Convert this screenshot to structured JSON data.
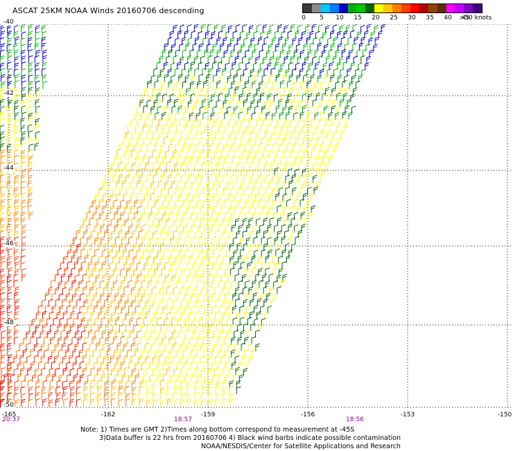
{
  "title": "ASCAT 25KM NOAA Winds 20160706 descending",
  "colorbar": {
    "colors": [
      "#3a3a3a",
      "#8c8c8c",
      "#00c8ff",
      "#0080ff",
      "#0000c8",
      "#00b400",
      "#00c800",
      "#006400",
      "#ffff00",
      "#ffc800",
      "#ff8000",
      "#ff4000",
      "#ff0000",
      "#b40000",
      "#8b4513",
      "#5a2d0c",
      "#ff00ff",
      "#c800ff",
      "#8000c8",
      "#400080"
    ],
    "labels": [
      "0",
      "5",
      "10",
      "15",
      "20",
      "25",
      "30",
      "35",
      "40",
      "45",
      ">50 knots"
    ]
  },
  "axes": {
    "lat_labels": [
      "-40",
      "-42",
      "-44",
      "-46",
      "-48",
      "-50"
    ],
    "lon_labels": [
      "-165",
      "-162",
      "-159",
      "-156",
      "-153",
      "-150"
    ]
  },
  "times": [
    "20:37",
    "18:57",
    "18:56"
  ],
  "notes": [
    "Note: 1) Times are GMT 2)Times along bottom correspond to measurement at -45S",
    "3)Data buffer is 22 hrs from 20160706 4) Black wind barbs indicate possible contamination",
    "NOAA/NESDIS/Center for Satellite Applications and Research"
  ]
}
